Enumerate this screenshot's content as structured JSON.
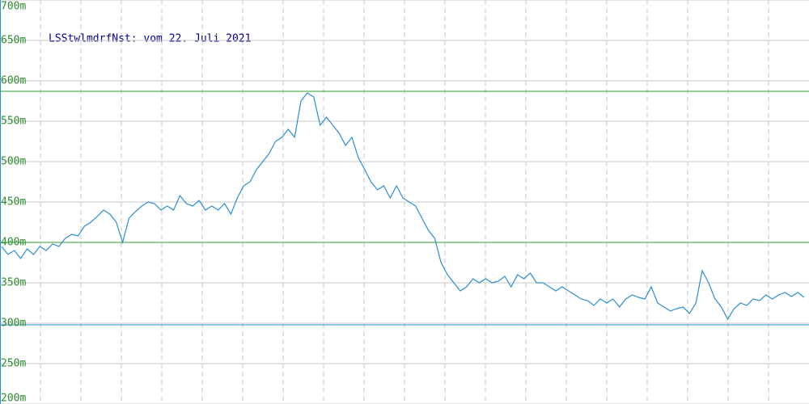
{
  "chart_data": {
    "type": "line",
    "title": "LSStwlmdrfNst: vom 22. Juli 2021",
    "ylim": [
      200,
      700
    ],
    "yticks": [
      {
        "value": 200,
        "label": "200m"
      },
      {
        "value": 250,
        "label": "250m"
      },
      {
        "value": 300,
        "label": "300m"
      },
      {
        "value": 350,
        "label": "350m"
      },
      {
        "value": 400,
        "label": "400m"
      },
      {
        "value": 450,
        "label": "450m"
      },
      {
        "value": 500,
        "label": "500m"
      },
      {
        "value": 550,
        "label": "550m"
      },
      {
        "value": 600,
        "label": "600m"
      },
      {
        "value": 650,
        "label": "650m"
      },
      {
        "value": 700,
        "label": "700m"
      }
    ],
    "grid": true,
    "reference_lines": [
      {
        "value": 587,
        "color": "#2e9e2e"
      },
      {
        "value": 400,
        "color": "#2e9e2e"
      },
      {
        "value": 298,
        "color": "#2a8fd0"
      }
    ],
    "series": [
      {
        "color": "#2a8fd0",
        "values": [
          395,
          385,
          390,
          380,
          392,
          385,
          395,
          390,
          398,
          395,
          405,
          410,
          408,
          420,
          425,
          432,
          440,
          435,
          425,
          400,
          430,
          438,
          445,
          450,
          448,
          440,
          445,
          440,
          458,
          448,
          445,
          452,
          440,
          445,
          440,
          448,
          435,
          455,
          470,
          475,
          490,
          500,
          510,
          525,
          530,
          540,
          530,
          575,
          585,
          580,
          545,
          555,
          545,
          535,
          520,
          530,
          505,
          490,
          475,
          465,
          470,
          455,
          470,
          455,
          450,
          445,
          430,
          415,
          405,
          375,
          360,
          350,
          340,
          345,
          355,
          350,
          355,
          350,
          352,
          358,
          345,
          360,
          355,
          362,
          350,
          350,
          345,
          340,
          345,
          340,
          335,
          330,
          328,
          322,
          330,
          325,
          330,
          320,
          330,
          335,
          332,
          330,
          345,
          325,
          320,
          315,
          318,
          320,
          312,
          325,
          365,
          350,
          330,
          320,
          305,
          318,
          325,
          322,
          330,
          328,
          335,
          330,
          335,
          338,
          333,
          338,
          332
        ]
      }
    ]
  }
}
